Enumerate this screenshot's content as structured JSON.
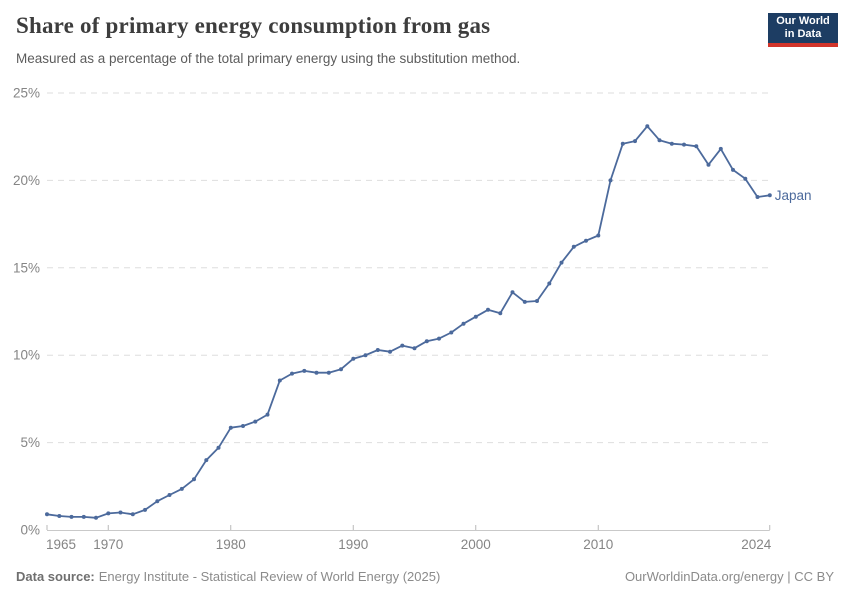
{
  "header": {
    "title": "Share of primary energy consumption from gas",
    "subtitle": "Measured as a percentage of the total primary energy using the substitution method.",
    "logo": {
      "line1": "Our World",
      "line2": "in Data"
    }
  },
  "colors": {
    "accent_line": "#4C6A9C",
    "logo_bg": "#1d3d63",
    "logo_red": "#d2352b",
    "grid": "#dedede",
    "axis": "#c9c9c9",
    "axis_text": "#858585"
  },
  "chart_data": {
    "type": "line",
    "title": "Share of primary energy consumption from gas",
    "subtitle": "Measured as a percentage of the total primary energy using the substitution method.",
    "xlabel": "",
    "ylabel": "",
    "grid": "horizontal-dashed",
    "legend": "end-of-line-label",
    "xlim": [
      1965,
      2024
    ],
    "ylim": [
      0,
      25
    ],
    "x_ticks": [
      1965,
      1970,
      1980,
      1990,
      2000,
      2010,
      2024
    ],
    "y_ticks": [
      0,
      5,
      10,
      15,
      20,
      25
    ],
    "y_suffix": "%",
    "x": [
      1965,
      1966,
      1967,
      1968,
      1969,
      1970,
      1971,
      1972,
      1973,
      1974,
      1975,
      1976,
      1977,
      1978,
      1979,
      1980,
      1981,
      1982,
      1983,
      1984,
      1985,
      1986,
      1987,
      1988,
      1989,
      1990,
      1991,
      1992,
      1993,
      1994,
      1995,
      1996,
      1997,
      1998,
      1999,
      2000,
      2001,
      2002,
      2003,
      2004,
      2005,
      2006,
      2007,
      2008,
      2009,
      2010,
      2011,
      2012,
      2013,
      2014,
      2015,
      2016,
      2017,
      2018,
      2019,
      2020,
      2021,
      2022,
      2023,
      2024
    ],
    "series": [
      {
        "name": "Japan",
        "color": "#4C6A9C",
        "values": [
          0.9,
          0.8,
          0.75,
          0.75,
          0.7,
          0.95,
          1.0,
          0.9,
          1.15,
          1.65,
          2.0,
          2.35,
          2.9,
          4.0,
          4.7,
          5.85,
          5.95,
          6.2,
          6.6,
          8.55,
          8.95,
          9.1,
          9.0,
          9.0,
          9.2,
          9.8,
          10.0,
          10.3,
          10.2,
          10.55,
          10.4,
          10.8,
          10.95,
          11.3,
          11.8,
          12.2,
          12.6,
          12.4,
          13.6,
          13.05,
          13.1,
          14.1,
          15.3,
          16.2,
          16.55,
          16.85,
          20.0,
          22.1,
          22.25,
          23.1,
          22.3,
          22.1,
          22.05,
          21.95,
          20.9,
          21.8,
          20.6,
          20.1,
          19.05,
          19.15
        ]
      }
    ]
  },
  "footer": {
    "source_label": "Data source:",
    "source_text": "Energy Institute - Statistical Review of World Energy (2025)",
    "credit": "OurWorldinData.org/energy | CC BY"
  }
}
